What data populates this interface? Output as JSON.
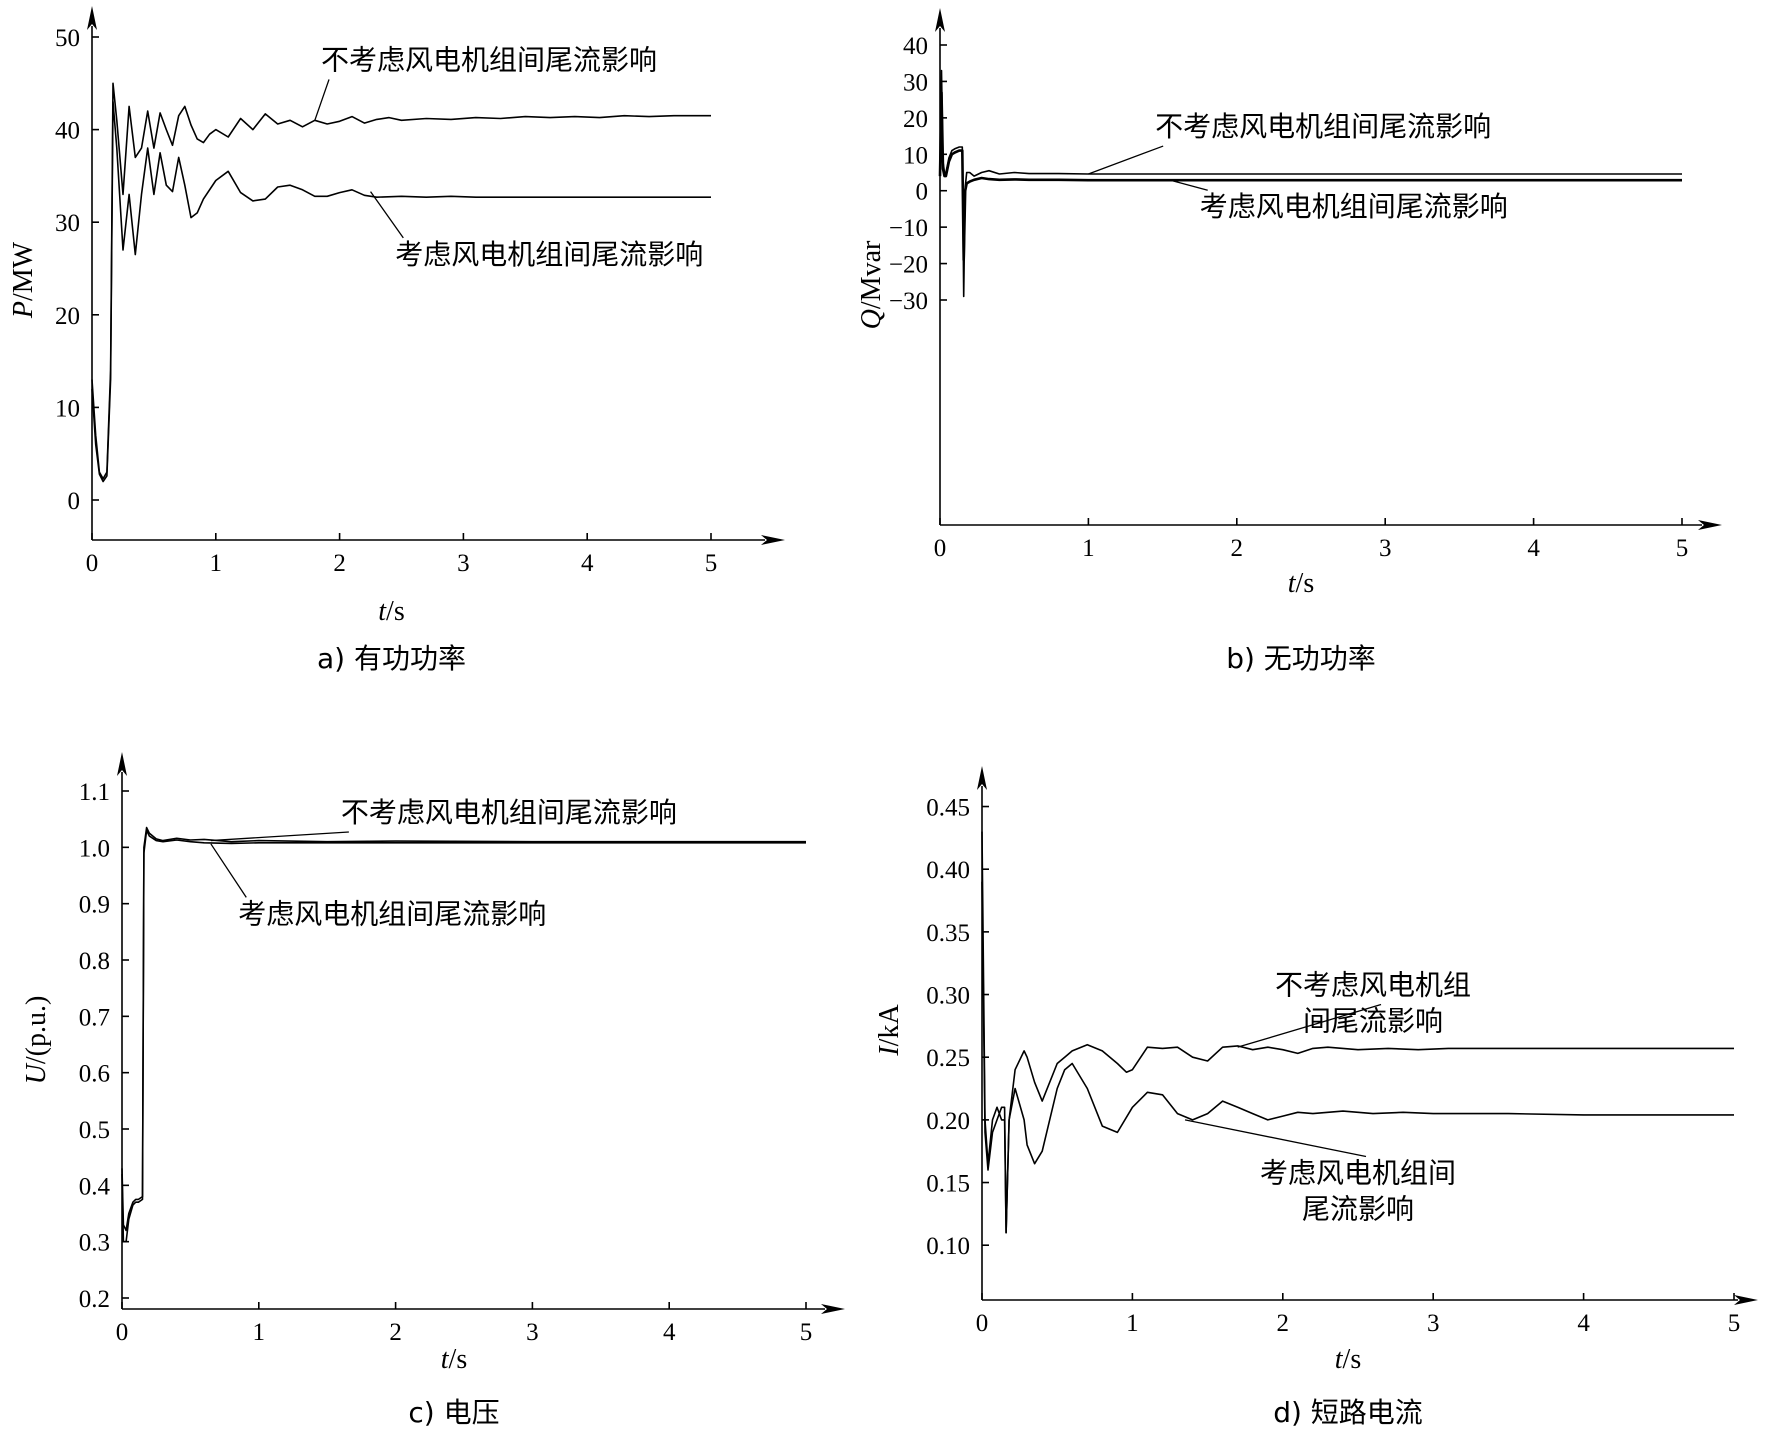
{
  "chart_data": [
    {
      "id": "a",
      "type": "line",
      "caption": "a) 有功功率",
      "ylabel_var": "P",
      "ylabel_unit": "/MW",
      "xlabel_var": "t",
      "xlabel_unit": "/s",
      "xlim": [
        0,
        5
      ],
      "ylim": [
        0,
        50
      ],
      "xticks": [
        "0",
        "1",
        "2",
        "3",
        "4",
        "5"
      ],
      "yticks": [
        "0",
        "10",
        "20",
        "30",
        "40",
        "50"
      ],
      "series": [
        {
          "name": "不考虑风电机组间尾流影响",
          "x": [
            0,
            0.03,
            0.06,
            0.09,
            0.12,
            0.15,
            0.17,
            0.2,
            0.25,
            0.3,
            0.35,
            0.4,
            0.45,
            0.5,
            0.55,
            0.6,
            0.65,
            0.7,
            0.75,
            0.8,
            0.85,
            0.9,
            0.95,
            1.0,
            1.1,
            1.2,
            1.3,
            1.4,
            1.5,
            1.6,
            1.7,
            1.8,
            1.9,
            2.0,
            2.1,
            2.2,
            2.3,
            2.4,
            2.5,
            2.7,
            2.9,
            3.1,
            3.3,
            3.5,
            3.7,
            3.9,
            4.1,
            4.3,
            4.5,
            4.7,
            5.0
          ],
          "y": [
            13,
            7,
            3,
            2.3,
            3,
            14,
            45,
            41,
            33,
            42.5,
            37,
            38,
            42,
            38,
            41.8,
            40,
            38.3,
            41.5,
            42.5,
            40.5,
            39,
            38.6,
            39.5,
            40,
            39.2,
            41.2,
            40,
            41.7,
            40.6,
            41,
            40.3,
            41,
            40.6,
            40.9,
            41.4,
            40.7,
            41.1,
            41.3,
            41,
            41.2,
            41.1,
            41.3,
            41.2,
            41.4,
            41.3,
            41.4,
            41.3,
            41.5,
            41.4,
            41.5,
            41.5
          ]
        },
        {
          "name": "考虑风电机组间尾流影响",
          "x": [
            0,
            0.03,
            0.06,
            0.09,
            0.12,
            0.15,
            0.17,
            0.2,
            0.25,
            0.3,
            0.35,
            0.4,
            0.45,
            0.5,
            0.55,
            0.6,
            0.65,
            0.7,
            0.75,
            0.8,
            0.85,
            0.9,
            1.0,
            1.1,
            1.2,
            1.3,
            1.4,
            1.5,
            1.6,
            1.7,
            1.8,
            1.9,
            2.0,
            2.1,
            2.2,
            2.3,
            2.5,
            2.7,
            2.9,
            3.1,
            3.5,
            4.0,
            4.5,
            5.0
          ],
          "y": [
            12,
            6,
            2.8,
            2,
            2.6,
            13,
            43,
            38,
            27,
            33,
            26.5,
            33,
            38,
            33,
            37.5,
            34,
            33.3,
            37,
            34,
            30.5,
            31,
            32.5,
            34.5,
            35.5,
            33.2,
            32.3,
            32.5,
            33.8,
            34,
            33.5,
            32.8,
            32.8,
            33.2,
            33.5,
            32.9,
            32.7,
            32.8,
            32.7,
            32.8,
            32.7,
            32.7,
            32.7,
            32.7,
            32.7
          ]
        }
      ],
      "annotations": [
        {
          "text": "不考虑风电机组间尾流影响",
          "target": [
            1.8,
            41.0
          ],
          "label": [
            1.85,
            46.5
          ]
        },
        {
          "text": "考虑风电机组间尾流影响",
          "target": [
            2.25,
            33.3
          ],
          "label": [
            2.45,
            25.5
          ]
        }
      ]
    },
    {
      "id": "b",
      "type": "line",
      "caption": "b) 无功功率",
      "ylabel_var": "Q",
      "ylabel_unit": "/Mvar",
      "xlabel_var": "t",
      "xlabel_unit": "/s",
      "xlim": [
        0,
        5
      ],
      "ylim": [
        -30,
        40
      ],
      "xticks": [
        "0",
        "1",
        "2",
        "3",
        "4",
        "5"
      ],
      "yticks": [
        "−30",
        "−20",
        "−10",
        "0",
        "10",
        "20",
        "30",
        "40"
      ],
      "series": [
        {
          "name": "不考虑风电机组间尾流影响",
          "x": [
            0,
            0.01,
            0.02,
            0.03,
            0.04,
            0.06,
            0.08,
            0.1,
            0.13,
            0.15,
            0.16,
            0.17,
            0.18,
            0.2,
            0.23,
            0.28,
            0.33,
            0.4,
            0.5,
            0.6,
            0.8,
            1.0,
            1.5,
            2.0,
            3.0,
            4.0,
            5.0
          ],
          "y": [
            5,
            33,
            8,
            5,
            5,
            9,
            11,
            11.5,
            12,
            12,
            -29,
            1,
            5,
            5,
            4,
            5,
            5.5,
            4.6,
            5,
            4.7,
            4.7,
            4.6,
            4.6,
            4.6,
            4.6,
            4.6,
            4.6
          ]
        },
        {
          "name": "考虑风电机组间尾流影响",
          "x": [
            0,
            0.01,
            0.02,
            0.03,
            0.04,
            0.06,
            0.08,
            0.1,
            0.13,
            0.15,
            0.16,
            0.17,
            0.18,
            0.2,
            0.23,
            0.28,
            0.33,
            0.4,
            0.5,
            0.6,
            0.8,
            1.0,
            1.5,
            2.0,
            3.0,
            4.0,
            5.0
          ],
          "y": [
            4,
            27,
            6,
            4,
            4,
            8,
            10,
            10.5,
            11,
            11,
            -19,
            0,
            2,
            2.5,
            3,
            3.5,
            3.2,
            3,
            3.1,
            3,
            3,
            2.9,
            2.9,
            2.9,
            2.9,
            2.9,
            2.9
          ]
        }
      ],
      "annotations": [
        {
          "text": "不考虑风电机组间尾流影响",
          "target": [
            1.0,
            4.6
          ],
          "label": [
            1.45,
            15
          ]
        },
        {
          "text": "考虑风电机组间尾流影响",
          "target": [
            1.55,
            2.9
          ],
          "label": [
            1.75,
            -7
          ]
        }
      ]
    },
    {
      "id": "c",
      "type": "line",
      "caption": "c) 电压",
      "ylabel_var": "U",
      "ylabel_unit": "/(p.u.)",
      "xlabel_var": "t",
      "xlabel_unit": "/s",
      "xlim": [
        0,
        5
      ],
      "ylim": [
        0.2,
        1.1
      ],
      "xticks": [
        "0",
        "1",
        "2",
        "3",
        "4",
        "5"
      ],
      "yticks": [
        "0.2",
        "0.3",
        "0.4",
        "0.5",
        "0.6",
        "0.7",
        "0.8",
        "0.9",
        "1.0",
        "1.1"
      ],
      "series": [
        {
          "name": "不考虑风电机组间尾流影响",
          "x": [
            0,
            0.01,
            0.03,
            0.05,
            0.08,
            0.1,
            0.12,
            0.15,
            0.16,
            0.18,
            0.2,
            0.25,
            0.3,
            0.4,
            0.5,
            0.6,
            0.8,
            1.0,
            1.5,
            2.0,
            3.0,
            4.0,
            5.0
          ],
          "y": [
            0.43,
            0.33,
            0.32,
            0.35,
            0.37,
            0.375,
            0.375,
            0.38,
            1.0,
            1.035,
            1.025,
            1.015,
            1.012,
            1.016,
            1.013,
            1.014,
            1.01,
            1.012,
            1.01,
            1.011,
            1.01,
            1.01,
            1.01
          ]
        },
        {
          "name": "考虑风电机组间尾流影响",
          "x": [
            0,
            0.01,
            0.03,
            0.05,
            0.08,
            0.1,
            0.12,
            0.15,
            0.16,
            0.18,
            0.2,
            0.25,
            0.3,
            0.4,
            0.5,
            0.6,
            0.8,
            1.0,
            1.5,
            2.0,
            3.0,
            4.0,
            5.0
          ],
          "y": [
            0.42,
            0.3,
            0.3,
            0.34,
            0.365,
            0.37,
            0.37,
            0.375,
            0.99,
            1.03,
            1.02,
            1.012,
            1.01,
            1.013,
            1.01,
            1.008,
            1.007,
            1.008,
            1.008,
            1.008,
            1.008,
            1.008,
            1.008
          ]
        }
      ],
      "annotations": [
        {
          "text": "不考虑风电机组间尾流影响",
          "target": [
            0.65,
            1.012
          ],
          "label": [
            1.6,
            1.045
          ]
        },
        {
          "text": "考虑风电机组间尾流影响",
          "target": [
            0.65,
            1.006
          ],
          "label": [
            0.85,
            0.865
          ]
        }
      ]
    },
    {
      "id": "d",
      "type": "line",
      "caption": "d) 短路电流",
      "ylabel_var": "I",
      "ylabel_unit": "/kA",
      "xlabel_var": "t",
      "xlabel_unit": "/s",
      "xlim": [
        0,
        5
      ],
      "ylim": [
        0.085,
        0.46
      ],
      "xticks": [
        "0",
        "1",
        "2",
        "3",
        "4",
        "5"
      ],
      "yticks": [
        "0.10",
        "0.15",
        "0.20",
        "0.25",
        "0.30",
        "0.35",
        "0.40",
        "0.45"
      ],
      "series": [
        {
          "name": "不考虑风电机组间尾流影响",
          "x": [
            0,
            0.02,
            0.04,
            0.07,
            0.1,
            0.13,
            0.15,
            0.16,
            0.18,
            0.22,
            0.28,
            0.3,
            0.35,
            0.4,
            0.5,
            0.55,
            0.6,
            0.7,
            0.8,
            0.9,
            0.96,
            1.0,
            1.1,
            1.2,
            1.3,
            1.4,
            1.5,
            1.6,
            1.7,
            1.8,
            1.9,
            2.0,
            2.1,
            2.2,
            2.3,
            2.5,
            2.7,
            2.9,
            3.1,
            3.3,
            3.5,
            3.7,
            3.9,
            4.1,
            4.3,
            4.5,
            4.7,
            5.0
          ],
          "y": [
            0.43,
            0.2,
            0.165,
            0.2,
            0.21,
            0.2,
            0.2,
            0.11,
            0.2,
            0.24,
            0.255,
            0.25,
            0.23,
            0.215,
            0.245,
            0.25,
            0.255,
            0.26,
            0.255,
            0.245,
            0.238,
            0.24,
            0.258,
            0.257,
            0.258,
            0.25,
            0.247,
            0.258,
            0.259,
            0.256,
            0.258,
            0.256,
            0.253,
            0.257,
            0.258,
            0.256,
            0.257,
            0.256,
            0.257,
            0.257,
            0.257,
            0.257,
            0.257,
            0.257,
            0.257,
            0.257,
            0.257,
            0.257
          ]
        },
        {
          "name": "考虑风电机组间尾流影响",
          "x": [
            0,
            0.02,
            0.04,
            0.07,
            0.1,
            0.13,
            0.15,
            0.16,
            0.18,
            0.22,
            0.28,
            0.3,
            0.35,
            0.4,
            0.5,
            0.55,
            0.6,
            0.7,
            0.8,
            0.9,
            1.0,
            1.1,
            1.2,
            1.3,
            1.4,
            1.5,
            1.6,
            1.7,
            1.8,
            1.9,
            2.0,
            2.1,
            2.2,
            2.4,
            2.6,
            2.8,
            3.0,
            3.5,
            4.0,
            4.5,
            5.0
          ],
          "y": [
            0.39,
            0.19,
            0.16,
            0.19,
            0.2,
            0.21,
            0.21,
            0.11,
            0.2,
            0.225,
            0.2,
            0.18,
            0.165,
            0.175,
            0.225,
            0.24,
            0.245,
            0.225,
            0.195,
            0.19,
            0.21,
            0.222,
            0.22,
            0.205,
            0.2,
            0.205,
            0.215,
            0.21,
            0.205,
            0.2,
            0.203,
            0.206,
            0.205,
            0.207,
            0.205,
            0.206,
            0.205,
            0.205,
            0.204,
            0.204,
            0.204
          ]
        }
      ],
      "annotations": [
        {
          "text_lines": [
            "不考虑风电机组",
            "间尾流影响"
          ],
          "target": [
            1.7,
            0.258
          ],
          "label": [
            2.6,
            0.3
          ]
        },
        {
          "text_lines": [
            "考虑风电机组间",
            "尾流影响"
          ],
          "target": [
            1.35,
            0.2
          ],
          "label": [
            2.5,
            0.15
          ]
        }
      ]
    }
  ]
}
